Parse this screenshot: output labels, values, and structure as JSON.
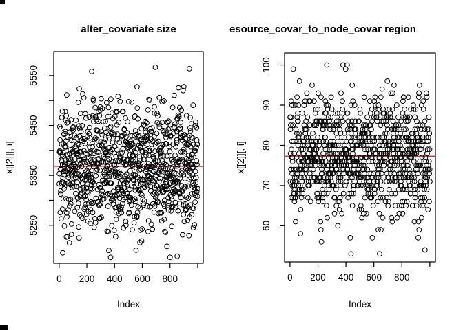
{
  "figure": {
    "background": "#ffffff",
    "axis_color": "#000000",
    "point_color": "#000000",
    "mean_line_color": "#ff0000",
    "marker": "open-circle"
  },
  "chart_data": [
    {
      "type": "scatter",
      "title": "alter_covariate size",
      "xlabel": "Index",
      "ylabel": "x[[2]][, i]",
      "x_description": "Index 1..1000",
      "n_points": 1000,
      "xlim": [
        -39,
        1040
      ],
      "ylim": [
        5174,
        5598
      ],
      "x_ticks": [
        0,
        200,
        400,
        600,
        800
      ],
      "x_ticks_all": [
        0,
        200,
        400,
        600,
        800,
        1000
      ],
      "y_ticks": [
        5250,
        5350,
        5450,
        5550
      ],
      "y_ticks_minor": [
        5300,
        5400,
        5500
      ],
      "grid": false,
      "mean_line": {
        "value": 5368,
        "color": "#ff0000"
      },
      "distribution": {
        "kind": "normal",
        "mean": 5368,
        "sd": 62,
        "round": false,
        "clamp": [
          5186,
          5588
        ],
        "seed": 20
      }
    },
    {
      "type": "scatter",
      "title": "esource_covar_to_node_covar region",
      "title_clipped": true,
      "xlabel": "Index",
      "ylabel": "x[[2]][, i]",
      "x_description": "Index 1..1000",
      "n_points": 1000,
      "xlim": [
        -39,
        1040
      ],
      "ylim": [
        51,
        103
      ],
      "x_ticks": [
        0,
        200,
        400,
        600,
        800
      ],
      "x_ticks_all": [
        0,
        200,
        400,
        600,
        800,
        1000
      ],
      "y_ticks": [
        60,
        70,
        80,
        90,
        100
      ],
      "y_ticks_minor": [],
      "grid": false,
      "mean_line": {
        "value": 77.3,
        "color": "#ff0000"
      },
      "distribution": {
        "kind": "normal-integer",
        "mean": 77.3,
        "sd": 7.5,
        "round": true,
        "clamp": [
          53,
          100
        ],
        "seed": 77
      }
    }
  ]
}
